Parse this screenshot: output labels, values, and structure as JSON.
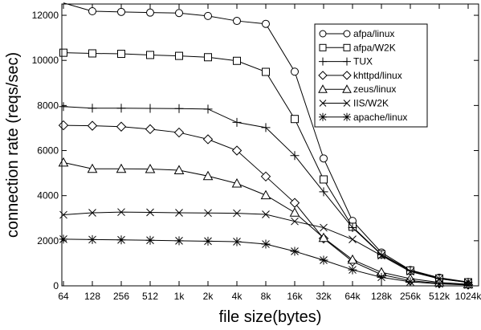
{
  "chart_data": {
    "type": "line",
    "xlabel": "file size(bytes)",
    "ylabel": "connection rate (reqs/sec)",
    "ylim": [
      0,
      12500
    ],
    "yticks": [
      "0",
      "2000",
      "4000",
      "6000",
      "8000",
      "10000",
      "12000"
    ],
    "categories": [
      "64",
      "128",
      "256",
      "512",
      "1k",
      "2k",
      "4k",
      "8k",
      "16k",
      "32k",
      "64k",
      "128k",
      "256k",
      "512k",
      "1024k"
    ],
    "grid": false,
    "legend_position": "top-right",
    "series": [
      {
        "name": "afpa/linux",
        "marker": "circle",
        "values": [
          12550,
          12180,
          12150,
          12120,
          12100,
          11970,
          11750,
          11620,
          9500,
          5650,
          2880,
          1480,
          700,
          360,
          170
        ]
      },
      {
        "name": "afpa/W2K",
        "marker": "square",
        "values": [
          10340,
          10310,
          10290,
          10240,
          10200,
          10140,
          9980,
          9490,
          7400,
          4720,
          2620,
          1400,
          680,
          330,
          160
        ]
      },
      {
        "name": "TUX",
        "marker": "plus",
        "values": [
          7950,
          7880,
          7880,
          7870,
          7860,
          7840,
          7250,
          7020,
          5780,
          4170,
          2580,
          1380,
          670,
          320,
          150
        ]
      },
      {
        "name": "khttpd/linux",
        "marker": "diamond",
        "values": [
          7120,
          7100,
          7060,
          6950,
          6800,
          6500,
          6000,
          4850,
          3680,
          2100,
          1080,
          500,
          230,
          110,
          50
        ]
      },
      {
        "name": "zeus/linux",
        "marker": "triangle",
        "values": [
          5470,
          5190,
          5190,
          5180,
          5130,
          4870,
          4540,
          4020,
          3250,
          2130,
          1160,
          600,
          320,
          150,
          70
        ]
      },
      {
        "name": "IIS/W2K",
        "marker": "x",
        "values": [
          3150,
          3240,
          3270,
          3260,
          3240,
          3230,
          3220,
          3170,
          2860,
          2580,
          2060,
          1340,
          630,
          310,
          150
        ]
      },
      {
        "name": "apache/linux",
        "marker": "star",
        "values": [
          2070,
          2050,
          2040,
          2020,
          2000,
          1980,
          1960,
          1850,
          1530,
          1140,
          710,
          380,
          180,
          90,
          40
        ]
      }
    ]
  }
}
